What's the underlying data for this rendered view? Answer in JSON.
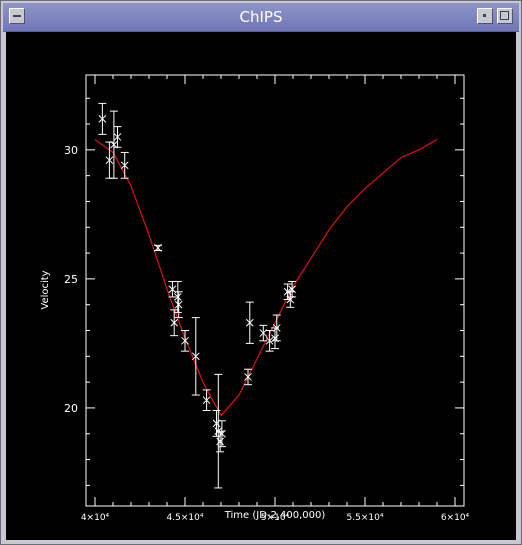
{
  "window": {
    "title": "ChIPS"
  },
  "chart_data": {
    "type": "scatter",
    "title": "",
    "xlabel": "Time (JD-2,400,000)",
    "ylabel": "Velocity",
    "xlim": [
      39500,
      60500
    ],
    "ylim": [
      16.2,
      32.9
    ],
    "xticks": [
      {
        "value": 40000,
        "label": "4×10⁴"
      },
      {
        "value": 45000,
        "label": "4.5×10⁴"
      },
      {
        "value": 50000,
        "label": "5×10⁴"
      },
      {
        "value": 55000,
        "label": "5.5×10⁴"
      },
      {
        "value": 60000,
        "label": "6×10⁴"
      }
    ],
    "yticks": [
      {
        "value": 20,
        "label": "20"
      },
      {
        "value": 25,
        "label": "25"
      },
      {
        "value": 30,
        "label": "30"
      }
    ],
    "grid": false,
    "colors": {
      "background": "#000000",
      "axes": "#ffffff",
      "points": "#ffffff",
      "model": "#e01010"
    },
    "series": [
      {
        "kind": "points_with_errorbars",
        "marker": "x",
        "points": [
          {
            "x": 40410,
            "y": 31.2,
            "err": 0.6
          },
          {
            "x": 40800,
            "y": 29.6,
            "err": 0.7
          },
          {
            "x": 41050,
            "y": 30.2,
            "err": 1.3
          },
          {
            "x": 41250,
            "y": 30.5,
            "err": 0.4
          },
          {
            "x": 41650,
            "y": 29.4,
            "err": 0.5
          },
          {
            "x": 43500,
            "y": 26.2,
            "err": 0.1
          },
          {
            "x": 44300,
            "y": 24.6,
            "err": 0.3
          },
          {
            "x": 44400,
            "y": 23.3,
            "err": 0.5
          },
          {
            "x": 44600,
            "y": 24.3,
            "err": 0.6
          },
          {
            "x": 44650,
            "y": 24.0,
            "err": 0.5
          },
          {
            "x": 45000,
            "y": 22.6,
            "err": 0.4
          },
          {
            "x": 45600,
            "y": 22.0,
            "err": 1.5
          },
          {
            "x": 46200,
            "y": 20.3,
            "err": 0.4
          },
          {
            "x": 46750,
            "y": 19.4,
            "err": 0.5
          },
          {
            "x": 46850,
            "y": 19.1,
            "err": 2.2
          },
          {
            "x": 46950,
            "y": 18.7,
            "err": 0.4
          },
          {
            "x": 47050,
            "y": 19.0,
            "err": 0.5
          },
          {
            "x": 48500,
            "y": 21.2,
            "err": 0.3
          },
          {
            "x": 48600,
            "y": 23.3,
            "err": 0.8
          },
          {
            "x": 49350,
            "y": 22.9,
            "err": 0.3
          },
          {
            "x": 49700,
            "y": 22.6,
            "err": 0.4
          },
          {
            "x": 50000,
            "y": 22.7,
            "err": 0.4
          },
          {
            "x": 50100,
            "y": 23.1,
            "err": 0.5
          },
          {
            "x": 50700,
            "y": 24.5,
            "err": 0.3
          },
          {
            "x": 50850,
            "y": 24.2,
            "err": 0.3
          },
          {
            "x": 50950,
            "y": 24.6,
            "err": 0.3
          }
        ]
      },
      {
        "kind": "model_line",
        "x": [
          40000,
          41000,
          42000,
          43000,
          44000,
          45000,
          46000,
          47000,
          48000,
          49000,
          50000,
          51000,
          52000,
          53000,
          54000,
          55000,
          56000,
          57000,
          58000,
          59000
        ],
        "y": [
          30.4,
          29.9,
          28.6,
          26.7,
          24.6,
          22.7,
          21.0,
          19.7,
          20.5,
          21.9,
          23.3,
          24.7,
          25.8,
          26.9,
          27.8,
          28.5,
          29.1,
          29.7,
          30.0,
          30.4
        ]
      }
    ]
  }
}
